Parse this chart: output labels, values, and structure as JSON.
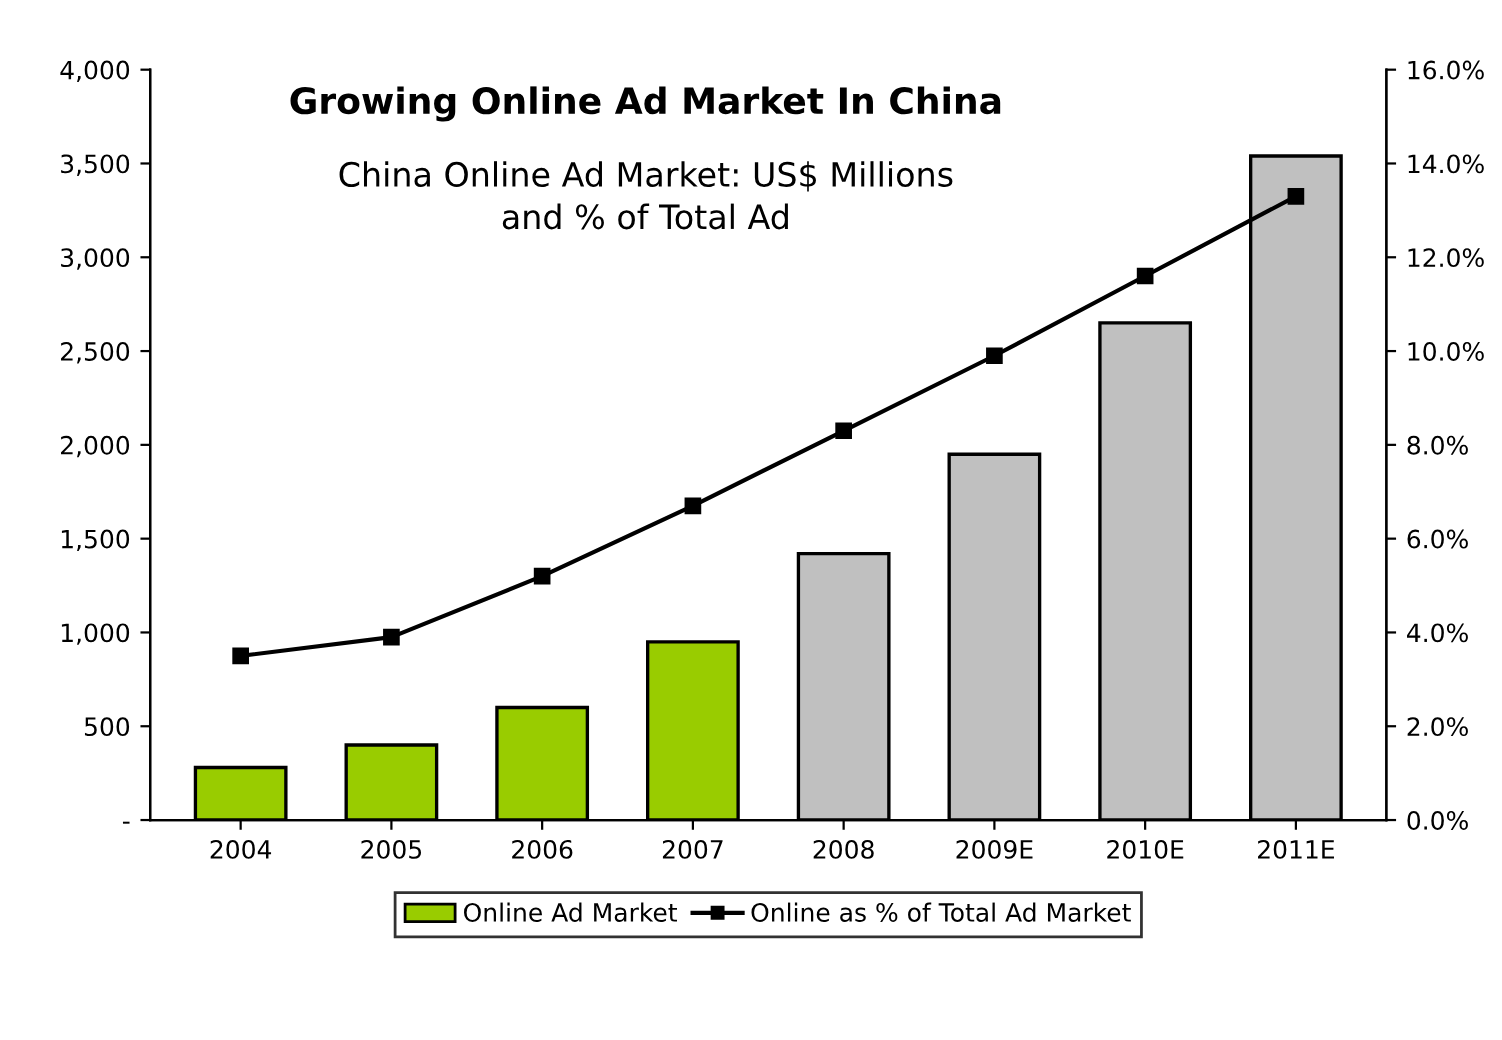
{
  "chart_data": {
    "type": "bar",
    "title": "Growing Online Ad Market In China",
    "subtitle": "China Online Ad Market: US$ Millions\nand % of Total Ad",
    "categories": [
      "2004",
      "2005",
      "2006",
      "2007",
      "2008",
      "2009E",
      "2010E",
      "2011E"
    ],
    "series": [
      {
        "name": "Online Ad Market",
        "color": "#99cc00",
        "colors": [
          "#99cc00",
          "#99cc00",
          "#99cc00",
          "#99cc00",
          "#c0c0c0",
          "#c0c0c0",
          "#c0c0c0",
          "#c0c0c0"
        ],
        "values": [
          280,
          400,
          600,
          950,
          1420,
          1950,
          2650,
          3540
        ]
      },
      {
        "name": "Online as % of Total Ad Market",
        "type": "line",
        "axis": "y2",
        "color": "#000000",
        "values": [
          3.5,
          3.9,
          5.2,
          6.7,
          8.3,
          9.9,
          11.6,
          13.3
        ]
      }
    ],
    "ylim": [
      0,
      4000
    ],
    "yticks": [
      {
        "value": 0,
        "label": "-"
      },
      {
        "value": 500,
        "label": "500"
      },
      {
        "value": 1000,
        "label": "1,000"
      },
      {
        "value": 1500,
        "label": "1,500"
      },
      {
        "value": 2000,
        "label": "2,000"
      },
      {
        "value": 2500,
        "label": "2,500"
      },
      {
        "value": 3000,
        "label": "3,000"
      },
      {
        "value": 3500,
        "label": "3,500"
      },
      {
        "value": 4000,
        "label": "4,000"
      }
    ],
    "y2lim": [
      0,
      16
    ],
    "y2ticks": [
      {
        "value": 0,
        "label": "0.0%"
      },
      {
        "value": 2,
        "label": "2.0%"
      },
      {
        "value": 4,
        "label": "4.0%"
      },
      {
        "value": 6,
        "label": "6.0%"
      },
      {
        "value": 8,
        "label": "8.0%"
      },
      {
        "value": 10,
        "label": "10.0%"
      },
      {
        "value": 12,
        "label": "12.0%"
      },
      {
        "value": 14,
        "label": "14.0%"
      },
      {
        "value": 16,
        "label": "16.0%"
      }
    ],
    "marker": "square",
    "line_style": "solid",
    "grid": false,
    "legend": "bottom"
  }
}
